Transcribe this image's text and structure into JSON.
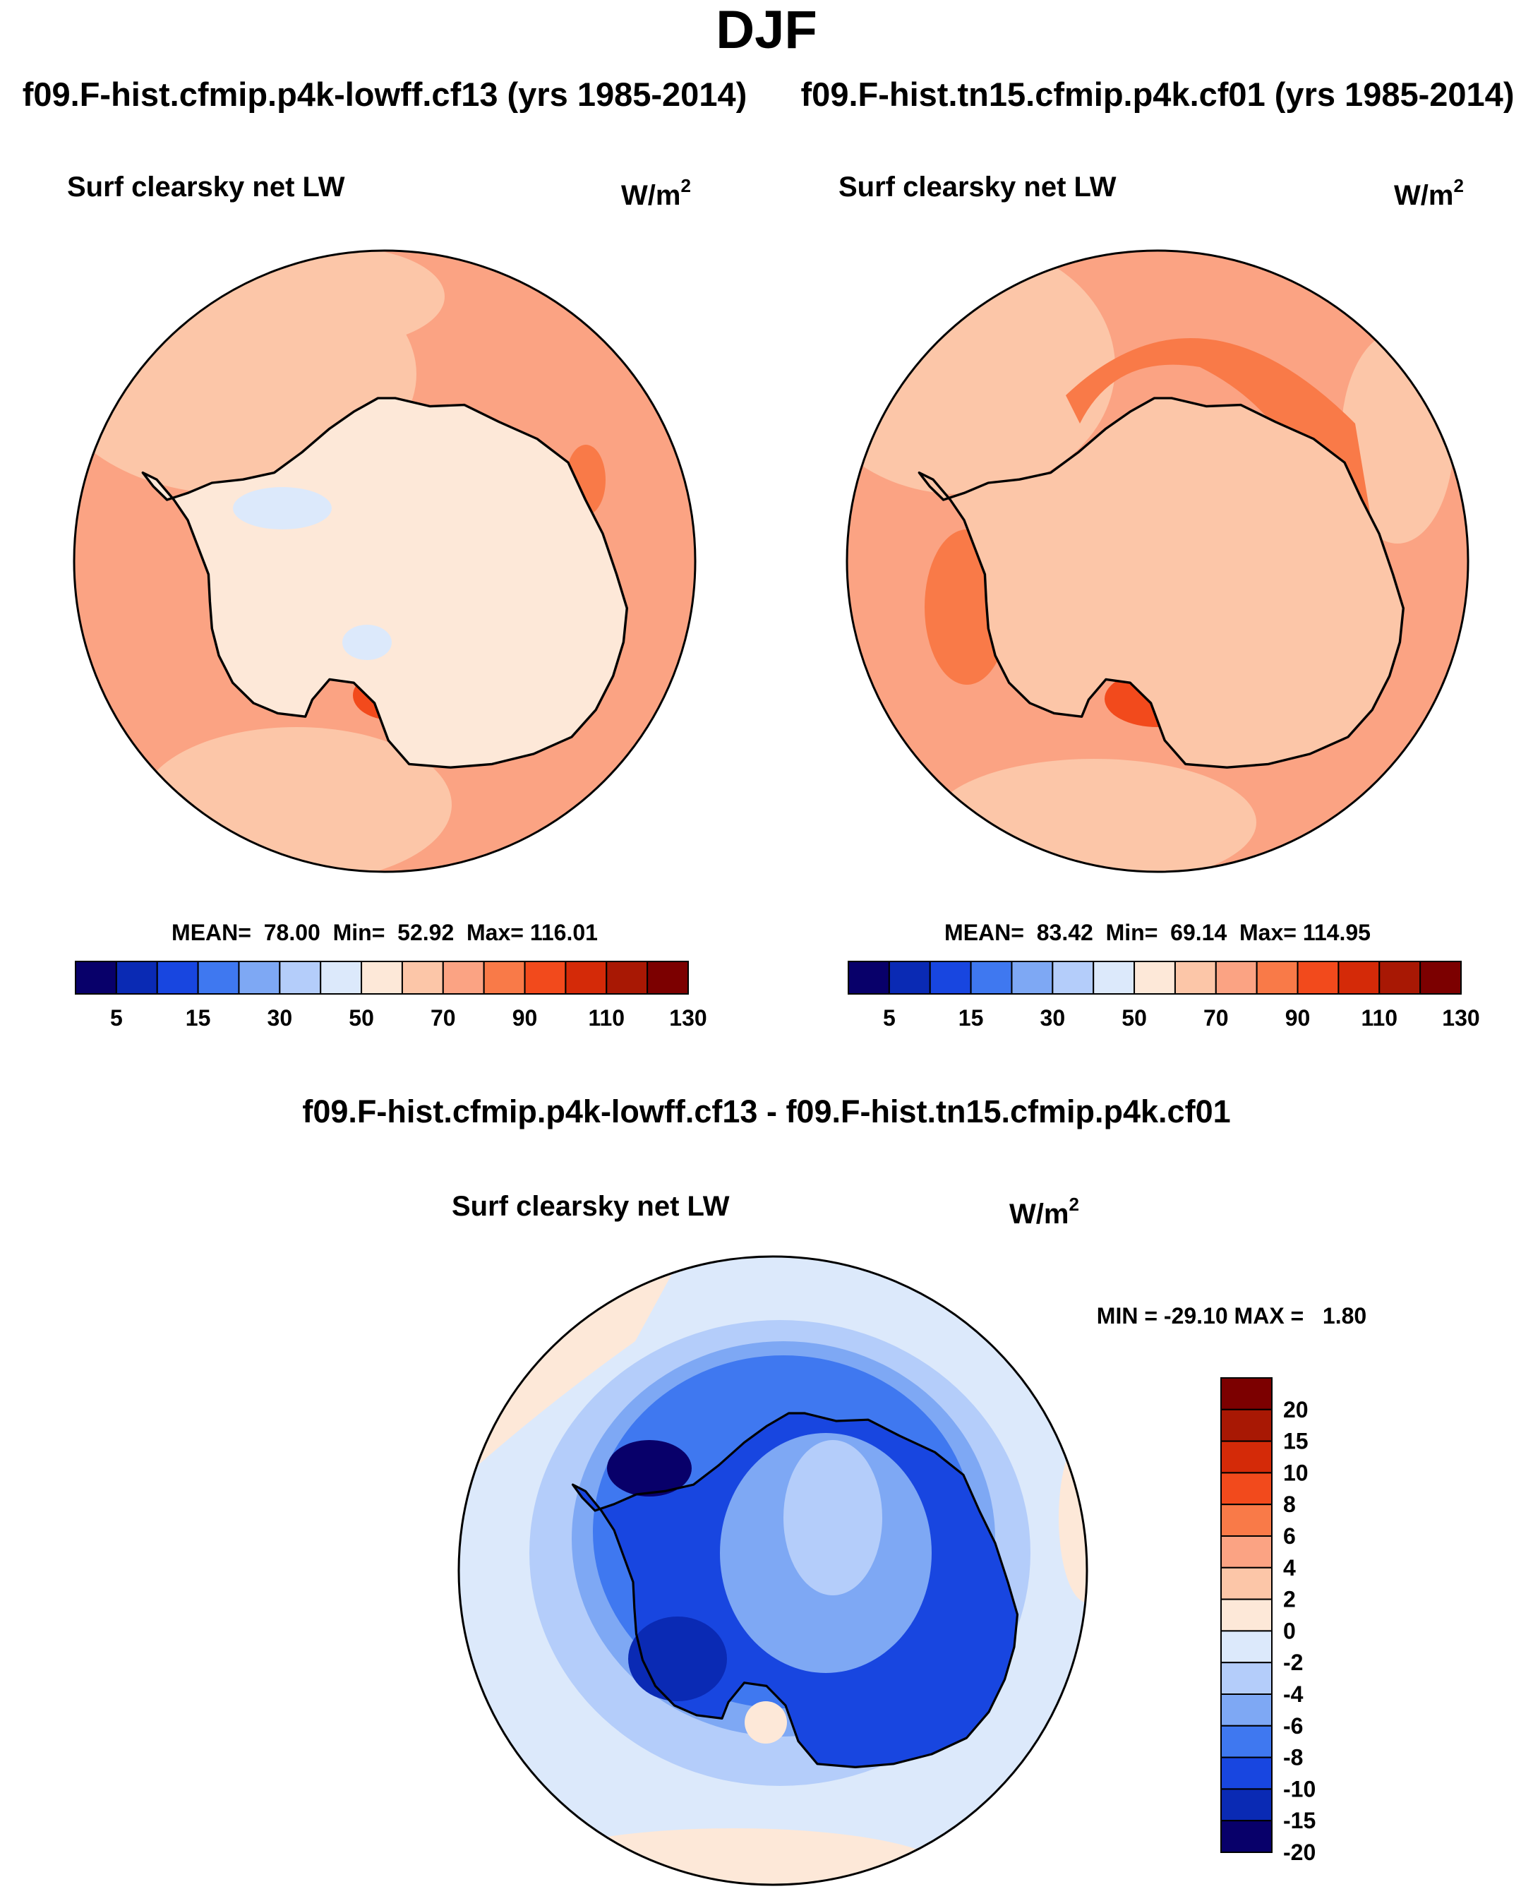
{
  "main_title": "DJF",
  "colors": {
    "abs_palette": [
      "#08006a",
      "#0a2ab4",
      "#1846e0",
      "#3f78f0",
      "#7ea8f4",
      "#b4cdfa",
      "#dce9fb",
      "#fde8d8",
      "#fcc6a8",
      "#fba383",
      "#f97a48",
      "#f24a1c",
      "#d42a08",
      "#a81804",
      "#7c0000"
    ],
    "diff_palette": [
      "#08006a",
      "#0a2ab4",
      "#1846e0",
      "#3f78f0",
      "#7ea8f4",
      "#b4cdfa",
      "#dce9fb",
      "#fde8d8",
      "#fcc6a8",
      "#fba383",
      "#f97a48",
      "#f24a1c",
      "#d42a08",
      "#a81804",
      "#7c0000"
    ]
  },
  "panels": [
    {
      "id": "left",
      "case_title": "f09.F-hist.cfmip.p4k-lowff.cf13 (yrs 1985-2014)",
      "variable": "Surf clearsky net LW",
      "units": "W/m",
      "units_exp": "2",
      "stats": {
        "mean_label": "MEAN=",
        "mean": "78.00",
        "min_label": "Min=",
        "min": "52.92",
        "max_label": "Max=",
        "max": "116.01"
      },
      "colorbar": {
        "levels": [
          "5",
          "15",
          "30",
          "50",
          "70",
          "90",
          "110",
          "130"
        ]
      },
      "map": {
        "ocean_color": "#fba383",
        "outer_ring_color": "#fcc6a8",
        "continent_color": "#fde8d8",
        "hotspot_color": "#f24a1c"
      }
    },
    {
      "id": "right",
      "case_title": "f09.F-hist.tn15.cfmip.p4k.cf01 (yrs 1985-2014)",
      "variable": "Surf clearsky net LW",
      "units": "W/m",
      "units_exp": "2",
      "stats": {
        "mean_label": "MEAN=",
        "mean": "83.42",
        "min_label": "Min=",
        "min": "69.14",
        "max_label": "Max=",
        "max": "114.95"
      },
      "colorbar": {
        "levels": [
          "5",
          "15",
          "30",
          "50",
          "70",
          "90",
          "110",
          "130"
        ]
      },
      "map": {
        "ocean_color": "#fba383",
        "outer_ring_color": "#fcc6a8",
        "continent_color": "#fcc6a8",
        "hotspot_color": "#f97a48"
      }
    }
  ],
  "difference": {
    "title": "f09.F-hist.cfmip.p4k-lowff.cf13 - f09.F-hist.tn15.cfmip.p4k.cf01",
    "variable": "Surf clearsky net LW",
    "units": "W/m",
    "units_exp": "2",
    "stats_text": "MIN = -29.10 MAX =   1.80",
    "colorbar": {
      "levels": [
        "-20",
        "-15",
        "-10",
        "-8",
        "-6",
        "-4",
        "-2",
        "0",
        "2",
        "4",
        "6",
        "8",
        "10",
        "15",
        "20"
      ]
    },
    "map": {
      "outer_color": "#dce9fb",
      "mid_color": "#b4cdfa",
      "inner_color": "#3f78f0",
      "continent_color": "#1846e0",
      "interior_color": "#7ea8f4"
    }
  }
}
